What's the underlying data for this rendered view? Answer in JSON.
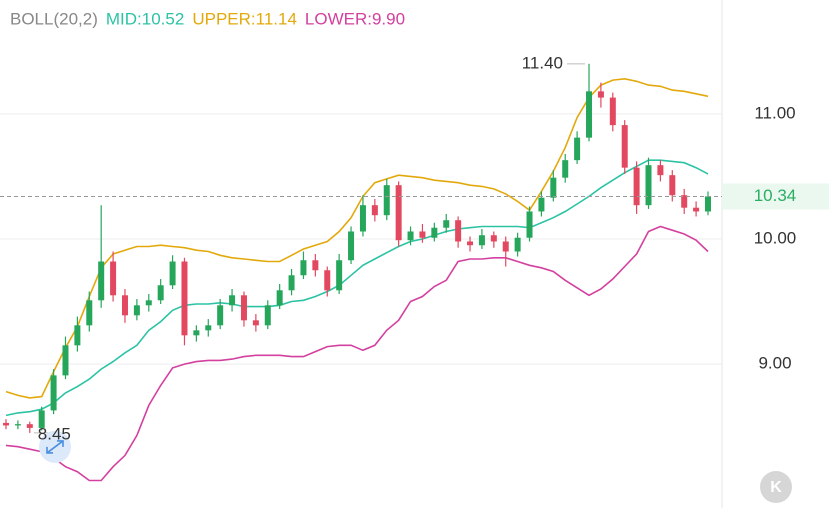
{
  "chart_data": {
    "type": "candlestick",
    "title": "BOLL(20,2)",
    "ylim": [
      7.85,
      11.91
    ],
    "yticks": [
      {
        "value": 9,
        "label": "9.00"
      },
      {
        "value": 10,
        "label": "10.00"
      },
      {
        "value": 11,
        "label": "11.00"
      }
    ],
    "grid": true,
    "up_color": "#26a65b",
    "down_color": "#e2485f",
    "last_price": {
      "value": 10.34,
      "label": "10.34"
    },
    "annotations": [
      {
        "value": 11.4,
        "label": "11.40"
      },
      {
        "value": 8.45,
        "label": "8.45"
      }
    ],
    "button_label": "K",
    "open": [
      8.53,
      8.51,
      8.52,
      8.49,
      8.63,
      8.91,
      9.15,
      9.31,
      9.51,
      9.82,
      9.55,
      9.39,
      9.47,
      9.51,
      9.63,
      9.82,
      9.23,
      9.27,
      9.31,
      9.47,
      9.55,
      9.35,
      9.31,
      9.47,
      9.59,
      9.71,
      9.83,
      9.75,
      9.59,
      9.83,
      10.06,
      10.27,
      10.19,
      10.43,
      9.99,
      10.06,
      10.01,
      10.09,
      10.15,
      9.98,
      9.95,
      10.03,
      9.98,
      9.9,
      10.01,
      10.22,
      10.33,
      10.49,
      10.63,
      10.81,
      11.18,
      11.13,
      10.91,
      10.57,
      10.27,
      10.59,
      10.51,
      10.35,
      10.25,
      10.22
    ],
    "high": [
      8.56,
      8.55,
      8.54,
      8.66,
      8.96,
      9.22,
      9.38,
      9.58,
      10.27,
      9.9,
      9.6,
      9.52,
      9.56,
      9.68,
      9.87,
      9.85,
      9.31,
      9.36,
      9.52,
      9.6,
      9.58,
      9.4,
      9.51,
      9.64,
      9.76,
      9.9,
      9.88,
      9.78,
      9.88,
      10.1,
      10.35,
      10.32,
      10.48,
      10.46,
      10.1,
      10.12,
      10.13,
      10.2,
      10.18,
      10.02,
      10.08,
      10.06,
      10.02,
      10.05,
      10.26,
      10.38,
      10.55,
      10.68,
      10.86,
      11.4,
      11.25,
      11.17,
      10.95,
      10.62,
      10.65,
      10.63,
      10.55,
      10.4,
      10.3,
      10.38
    ],
    "low": [
      8.48,
      8.48,
      8.45,
      8.47,
      8.6,
      8.88,
      9.1,
      9.26,
      9.45,
      9.5,
      9.33,
      9.35,
      9.42,
      9.48,
      9.6,
      9.15,
      9.18,
      9.22,
      9.28,
      9.42,
      9.3,
      9.26,
      9.28,
      9.44,
      9.55,
      9.68,
      9.7,
      9.54,
      9.56,
      9.8,
      10.02,
      10.14,
      10.15,
      9.94,
      9.95,
      9.97,
      9.98,
      10.05,
      9.93,
      9.9,
      9.92,
      9.93,
      9.78,
      9.86,
      9.98,
      10.18,
      10.3,
      10.45,
      10.6,
      10.78,
      11.05,
      10.86,
      10.52,
      10.2,
      10.24,
      10.46,
      10.3,
      10.2,
      10.18,
      10.19
    ],
    "close": [
      8.51,
      8.52,
      8.49,
      8.63,
      8.91,
      9.15,
      9.31,
      9.51,
      9.82,
      9.55,
      9.39,
      9.47,
      9.51,
      9.63,
      9.82,
      9.23,
      9.27,
      9.31,
      9.47,
      9.55,
      9.35,
      9.31,
      9.47,
      9.59,
      9.71,
      9.83,
      9.75,
      9.59,
      9.83,
      10.06,
      10.27,
      10.19,
      10.43,
      9.99,
      10.06,
      10.01,
      10.09,
      10.15,
      9.98,
      9.95,
      10.03,
      9.98,
      9.9,
      10.01,
      10.22,
      10.33,
      10.49,
      10.63,
      10.81,
      11.18,
      11.13,
      10.91,
      10.57,
      10.27,
      10.59,
      10.51,
      10.35,
      10.25,
      10.22,
      10.34
    ],
    "series": [
      {
        "name": "MID:10.52",
        "color": "#2cc3a5",
        "values": [
          8.59,
          8.61,
          8.62,
          8.64,
          8.69,
          8.77,
          8.82,
          8.88,
          8.96,
          9.02,
          9.09,
          9.15,
          9.27,
          9.34,
          9.43,
          9.47,
          9.48,
          9.48,
          9.49,
          9.48,
          9.46,
          9.46,
          9.46,
          9.47,
          9.5,
          9.51,
          9.54,
          9.58,
          9.63,
          9.71,
          9.79,
          9.84,
          9.89,
          9.94,
          9.98,
          10.0,
          10.03,
          10.06,
          10.08,
          10.09,
          10.1,
          10.1,
          10.1,
          10.1,
          10.09,
          10.13,
          10.17,
          10.22,
          10.28,
          10.34,
          10.41,
          10.47,
          10.53,
          10.58,
          10.63,
          10.63,
          10.62,
          10.61,
          10.57,
          10.52
        ]
      },
      {
        "name": "UPPER:11.14",
        "color": "#e3a90c",
        "values": [
          8.78,
          8.75,
          8.73,
          8.74,
          8.94,
          9.13,
          9.3,
          9.54,
          9.77,
          9.88,
          9.91,
          9.94,
          9.94,
          9.95,
          9.94,
          9.93,
          9.91,
          9.9,
          9.87,
          9.85,
          9.84,
          9.83,
          9.82,
          9.82,
          9.87,
          9.92,
          9.95,
          9.98,
          10.06,
          10.17,
          10.34,
          10.45,
          10.48,
          10.51,
          10.5,
          10.49,
          10.47,
          10.46,
          10.45,
          10.43,
          10.42,
          10.4,
          10.36,
          10.3,
          10.23,
          10.38,
          10.54,
          10.73,
          10.97,
          11.13,
          11.23,
          11.27,
          11.28,
          11.26,
          11.23,
          11.22,
          11.19,
          11.18,
          11.16,
          11.14
        ]
      },
      {
        "name": "LOWER:9.90",
        "color": "#d3409f",
        "values": [
          8.35,
          8.34,
          8.32,
          8.3,
          8.25,
          8.18,
          8.14,
          8.07,
          8.07,
          8.18,
          8.27,
          8.43,
          8.67,
          8.83,
          8.97,
          9.0,
          9.02,
          9.03,
          9.03,
          9.04,
          9.06,
          9.07,
          9.07,
          9.07,
          9.06,
          9.06,
          9.1,
          9.14,
          9.15,
          9.15,
          9.11,
          9.15,
          9.27,
          9.35,
          9.5,
          9.54,
          9.62,
          9.67,
          9.82,
          9.84,
          9.84,
          9.85,
          9.85,
          9.82,
          9.79,
          9.77,
          9.74,
          9.67,
          9.61,
          9.55,
          9.6,
          9.68,
          9.78,
          9.88,
          10.06,
          10.1,
          10.07,
          10.04,
          9.99,
          9.9
        ]
      }
    ]
  }
}
